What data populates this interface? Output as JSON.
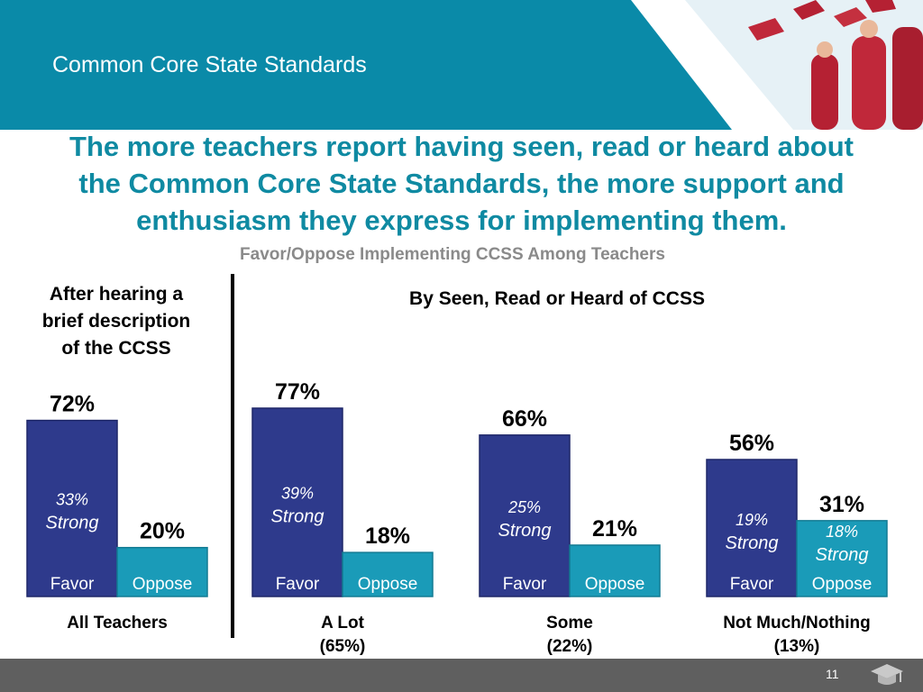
{
  "header": {
    "section_title": "Common Core State Standards"
  },
  "headline": {
    "lines": [
      "The more teachers report having seen, read or heard about",
      "the Common Core State Standards, the more support and",
      "enthusiasm they express for implementing them."
    ]
  },
  "subtitle": "Favor/Oppose Implementing CCSS Among Teachers",
  "left_panel_title": [
    "After hearing a",
    "brief description",
    "of the CCSS"
  ],
  "right_panel_title": "By Seen, Read or Heard of CCSS",
  "footer": {
    "page_number": "11"
  },
  "colors": {
    "favor": "#2e3a8c",
    "oppose": "#1a9bb8",
    "header_teal": "#0a8aa8",
    "headline": "#0f8aa2",
    "graduate_red": "#b52133"
  },
  "icons": [
    "graduation-cap-icon",
    "graduates-photo"
  ],
  "chart_data": {
    "type": "bar",
    "categories": [
      {
        "label": "All Teachers",
        "sublabel": ""
      },
      {
        "label": "A Lot",
        "sublabel": "(65%)"
      },
      {
        "label": "Some",
        "sublabel": "(22%)"
      },
      {
        "label": "Not Much/Nothing",
        "sublabel": "(13%)"
      }
    ],
    "series": [
      {
        "name": "Favor",
        "values": [
          72,
          77,
          66,
          56
        ],
        "labels": [
          "72%",
          "77%",
          "66%",
          "56%"
        ],
        "strong_labels": [
          [
            "33%",
            "Strong"
          ],
          [
            "39%",
            "Strong"
          ],
          [
            "25%",
            "Strong"
          ],
          [
            "19%",
            "Strong"
          ]
        ]
      },
      {
        "name": "Oppose",
        "values": [
          20,
          18,
          21,
          31
        ],
        "labels": [
          "20%",
          "18%",
          "21%",
          "31%"
        ],
        "strong_labels": [
          null,
          null,
          null,
          [
            "18%",
            "Strong"
          ]
        ]
      }
    ],
    "ylim": [
      0,
      100
    ],
    "grid": false,
    "legend": "none"
  }
}
